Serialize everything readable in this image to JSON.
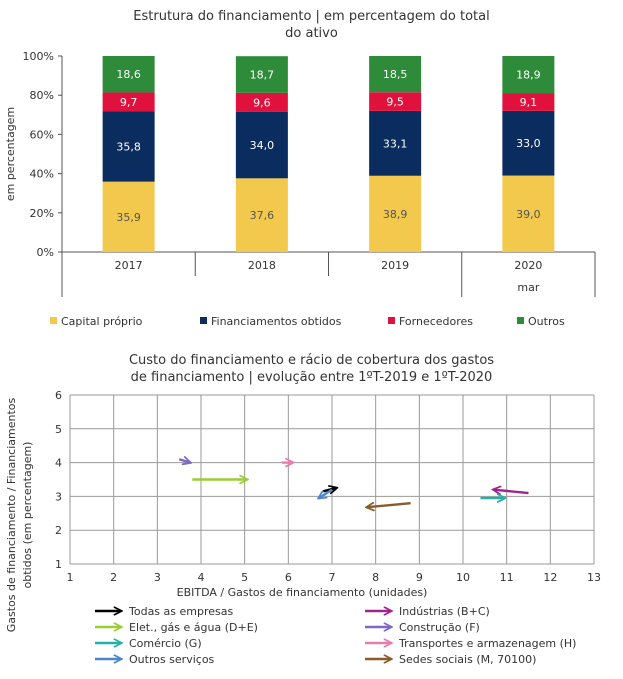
{
  "chart_data": [
    {
      "type": "bar",
      "stacked": true,
      "title": "Estrutura do financiamento | em percentagem do total do ativo",
      "title_lines": [
        "Estrutura do financiamento | em percentagem do total",
        "do ativo"
      ],
      "ylabel": "em percentagem",
      "ylim": [
        0,
        100
      ],
      "yticks": [
        "0%",
        "20%",
        "40%",
        "60%",
        "80%",
        "100%"
      ],
      "categories": [
        "2017",
        "2018",
        "2019",
        "2020"
      ],
      "sublabels": [
        "",
        "",
        "",
        "mar"
      ],
      "series": [
        {
          "name": "Capital próprio",
          "color": "#F2C94C",
          "values": [
            35.9,
            37.6,
            38.9,
            39.0
          ],
          "labels": [
            "35,9",
            "37,6",
            "38,9",
            "39,0"
          ],
          "label_color": "#555555"
        },
        {
          "name": "Financiamentos obtidos",
          "color": "#0B2C5E",
          "values": [
            35.8,
            34.0,
            33.1,
            33.0
          ],
          "labels": [
            "35,8",
            "34,0",
            "33,1",
            "33,0"
          ],
          "label_color": "#ffffff"
        },
        {
          "name": "Fornecedores",
          "color": "#E0113D",
          "values": [
            9.7,
            9.6,
            9.5,
            9.1
          ],
          "labels": [
            "9,7",
            "9,6",
            "9,5",
            "9,1"
          ],
          "label_color": "#ffffff"
        },
        {
          "name": "Outros",
          "color": "#2E8B3A",
          "values": [
            18.6,
            18.7,
            18.5,
            18.9
          ],
          "labels": [
            "18,6",
            "18,7",
            "18,5",
            "18,9"
          ],
          "label_color": "#ffffff"
        }
      ]
    },
    {
      "type": "scatter",
      "subtype": "arrows",
      "title": "Custo do financiamento e rácio de cobertura dos gastos de financiamento | evolução entre 1ºT-2019 e 1ºT-2020",
      "title_lines": [
        "Custo do financiamento e rácio de cobertura dos gastos",
        "de financiamento | evolução entre 1ºT-2019 e 1ºT-2020"
      ],
      "xlabel": "EBITDA / Gastos de financiamento (unidades)",
      "ylabel_lines": [
        "Gastos de financiamento / Financiamentos",
        "obtidos (em percentagem)"
      ],
      "xlim": [
        1,
        13
      ],
      "ylim": [
        1,
        6
      ],
      "xticks": [
        "1",
        "2",
        "3",
        "4",
        "5",
        "6",
        "7",
        "8",
        "9",
        "10",
        "11",
        "12",
        "13"
      ],
      "yticks": [
        "1",
        "2",
        "3",
        "4",
        "5",
        "6"
      ],
      "series": [
        {
          "name": "Todas as empresas",
          "color": "#000000",
          "from": [
            6.8,
            3.15
          ],
          "to": [
            7.1,
            3.25
          ]
        },
        {
          "name": "Indústrias (B+C)",
          "color": "#A0238F",
          "from": [
            11.5,
            3.1
          ],
          "to": [
            10.7,
            3.2
          ]
        },
        {
          "name": "Elet., gás e água (D+E)",
          "color": "#9ACD32",
          "from": [
            3.8,
            3.5
          ],
          "to": [
            5.05,
            3.5
          ]
        },
        {
          "name": "Construção (F)",
          "color": "#7B68C8",
          "from": [
            3.5,
            4.1
          ],
          "to": [
            3.75,
            4.0
          ]
        },
        {
          "name": "Comércio (G)",
          "color": "#20B2AA",
          "from": [
            10.4,
            2.95
          ],
          "to": [
            10.95,
            2.95
          ]
        },
        {
          "name": "Transportes e armazenagem (H)",
          "color": "#E87CB0",
          "from": [
            5.85,
            4.0
          ],
          "to": [
            6.1,
            4.0
          ]
        },
        {
          "name": "Outros serviços",
          "color": "#4A86C8",
          "from": [
            7.0,
            3.2
          ],
          "to": [
            6.7,
            2.95
          ]
        },
        {
          "name": "Sedes sociais (M, 70100)",
          "color": "#8B5A2B",
          "from": [
            8.8,
            2.8
          ],
          "to": [
            7.8,
            2.68
          ]
        }
      ]
    }
  ]
}
